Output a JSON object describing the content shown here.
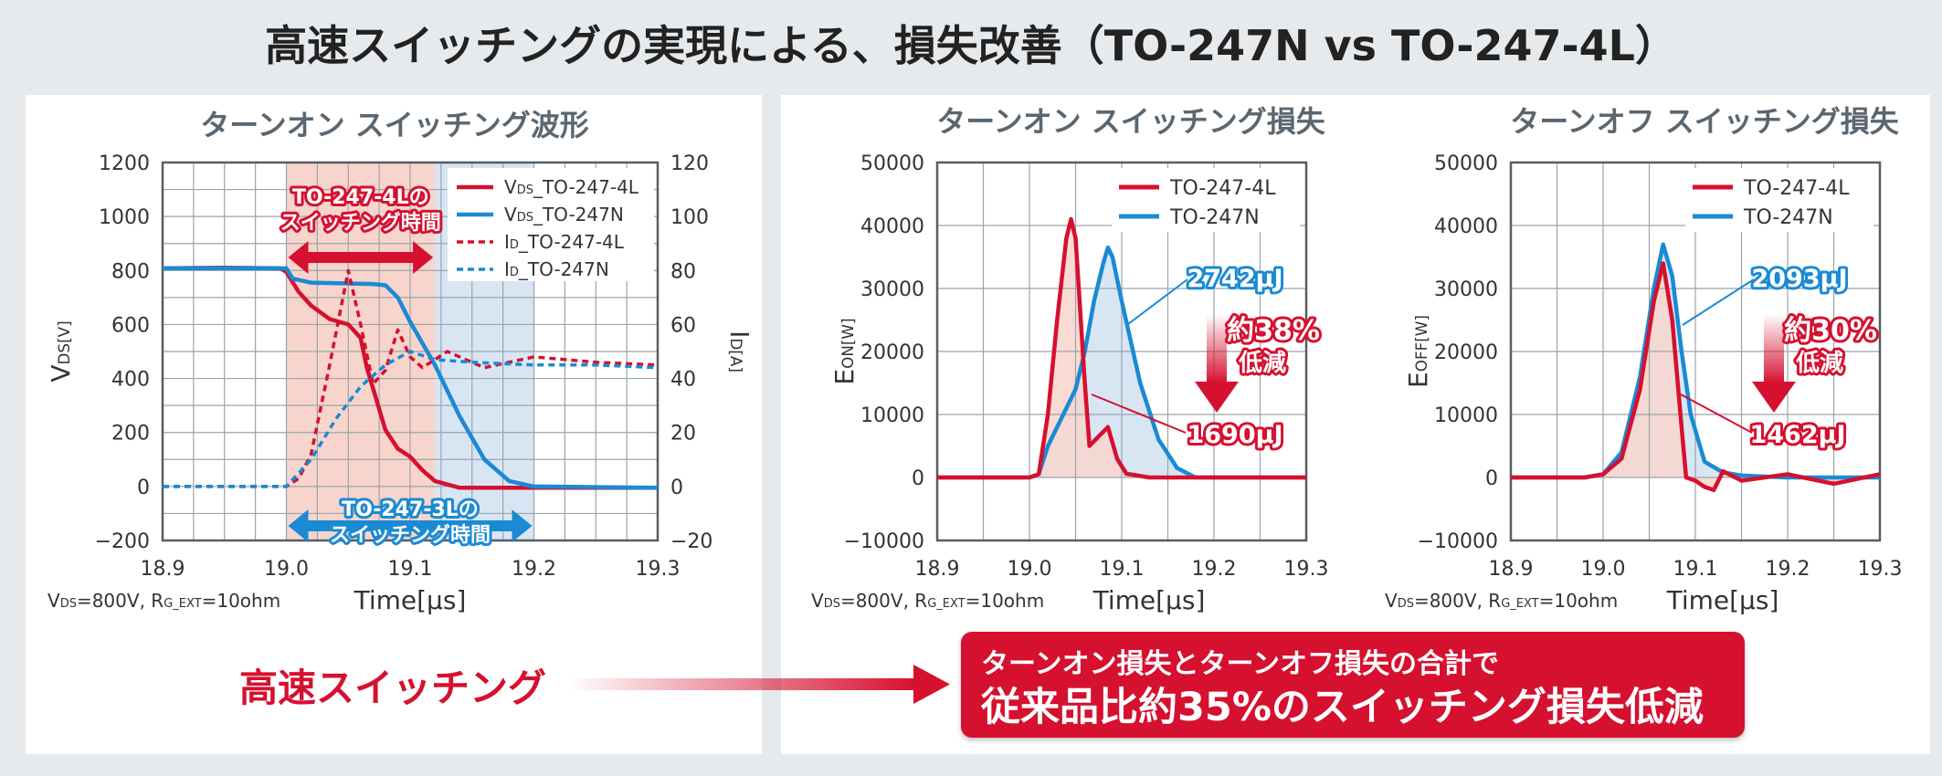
{
  "title": "高速スイッチングの実現による、損失改善（TO-247N vs TO-247-4L）",
  "colors": {
    "red": "#d6102f",
    "blue": "#1a8ad4",
    "redFill": "#f8d5cc",
    "blueFill": "#d8e6f4",
    "grid": "#9aa4ac",
    "axis": "#555e66"
  },
  "left_panel": {
    "condition": "VDS=800V, RG_EXT=10ohm"
  },
  "right_panel": {
    "condition_on": "VDS=800V, RG_EXT=10ohm",
    "condition_off": "VDS=800V, RG_EXT=10ohm"
  },
  "highspeed_label": "高速スイッチング",
  "conclusion": {
    "line1": "ターンオン損失とターンオフ損失の合計で",
    "line2": "従来品比約35%のスイッチング損失低減"
  },
  "chart_data": [
    {
      "type": "line",
      "title": "ターンオン スイッチング波形",
      "xlabel": "Time[µs]",
      "ylabel_left": "VDS[V]",
      "ylabel_right": "ID[A]",
      "xlim": [
        18.9,
        19.3
      ],
      "ylim_left": [
        -200,
        1200
      ],
      "ylim_right": [
        -20,
        120
      ],
      "x_ticks": [
        "18.9",
        "19.0",
        "19.1",
        "19.2",
        "19.3"
      ],
      "y_ticks_left": [
        "1200",
        "1000",
        "800",
        "600",
        "400",
        "200",
        "0",
        "−200"
      ],
      "y_ticks_right": [
        "120",
        "100",
        "80",
        "60",
        "40",
        "20",
        "0",
        "−20"
      ],
      "grid": true,
      "legend_position": "top-right",
      "annotations": {
        "red_band": {
          "label_line1": "TO-247-4Lの",
          "label_line2": "スイッチング時間",
          "x_range": [
            19.0,
            19.12
          ]
        },
        "blue_band": {
          "label_line1": "TO-247-3Lの",
          "label_line2": "スイッチング時間",
          "x_range": [
            19.0,
            19.2
          ]
        }
      },
      "series": [
        {
          "name": "VDS_TO-247-4L",
          "legend_main": "V",
          "legend_sub": "DS",
          "legend_rest": "_TO-247-4L",
          "axis": "left",
          "style": "solid",
          "color": "#d6102f",
          "x": [
            18.9,
            18.95,
            18.995,
            19.0,
            19.01,
            19.02,
            19.035,
            19.05,
            19.06,
            19.065,
            19.08,
            19.09,
            19.1,
            19.11,
            19.12,
            19.14,
            19.3
          ],
          "y": [
            808,
            810,
            808,
            795,
            720,
            670,
            620,
            600,
            550,
            440,
            210,
            140,
            110,
            60,
            20,
            -5,
            -5
          ]
        },
        {
          "name": "VDS_TO-247N",
          "legend_main": "V",
          "legend_sub": "DS",
          "legend_rest": "_TO-247N",
          "axis": "left",
          "style": "solid",
          "color": "#1a8ad4",
          "x": [
            18.9,
            18.95,
            19.0,
            19.005,
            19.02,
            19.05,
            19.07,
            19.08,
            19.09,
            19.1,
            19.12,
            19.14,
            19.16,
            19.18,
            19.2,
            19.3
          ],
          "y": [
            808,
            808,
            808,
            770,
            755,
            752,
            750,
            745,
            700,
            610,
            450,
            260,
            100,
            20,
            0,
            -5
          ]
        },
        {
          "name": "ID_TO-247-4L",
          "legend_main": "I",
          "legend_sub": "D",
          "legend_rest": "_TO-247-4L",
          "axis": "right",
          "style": "dashed",
          "color": "#d6102f",
          "x": [
            18.9,
            19.0,
            19.01,
            19.02,
            19.035,
            19.05,
            19.06,
            19.07,
            19.08,
            19.09,
            19.1,
            19.11,
            19.13,
            19.16,
            19.2,
            19.25,
            19.3
          ],
          "y": [
            0,
            0,
            3,
            12,
            45,
            80,
            60,
            38,
            43,
            58,
            48,
            44,
            50,
            44,
            48,
            46,
            45
          ]
        },
        {
          "name": "ID_TO-247N",
          "legend_main": "I",
          "legend_sub": "D",
          "legend_rest": "_TO-247N",
          "axis": "right",
          "style": "dashed",
          "color": "#1a8ad4",
          "x": [
            18.9,
            19.0,
            19.02,
            19.04,
            19.06,
            19.08,
            19.1,
            19.12,
            19.15,
            19.2,
            19.25,
            19.3
          ],
          "y": [
            0,
            0,
            10,
            25,
            37,
            45,
            50,
            47,
            46,
            45,
            45,
            44
          ]
        }
      ]
    },
    {
      "type": "area",
      "title": "ターンオン スイッチング損失",
      "xlabel": "Time[µs]",
      "ylabel": "EON[W]",
      "xlim": [
        18.9,
        19.3
      ],
      "ylim": [
        -10000,
        50000
      ],
      "x_ticks": [
        "18.9",
        "19.0",
        "19.1",
        "19.2",
        "19.3"
      ],
      "y_ticks": [
        "50000",
        "40000",
        "30000",
        "20000",
        "10000",
        "0",
        "−10000"
      ],
      "grid": true,
      "legend_position": "top-right",
      "annotations": {
        "energy_4L": "1690µJ",
        "energy_N": "2742µJ",
        "reduction_line1": "約38%",
        "reduction_line2": "低減"
      },
      "series": [
        {
          "name": "TO-247-4L",
          "color": "#d6102f",
          "x": [
            18.9,
            19.0,
            19.01,
            19.02,
            19.03,
            19.04,
            19.045,
            19.05,
            19.06,
            19.065,
            19.075,
            19.085,
            19.095,
            19.105,
            19.13,
            19.3
          ],
          "y": [
            0,
            0,
            500,
            10000,
            25000,
            38000,
            41000,
            38000,
            15000,
            5000,
            6500,
            8000,
            3000,
            600,
            0,
            0
          ]
        },
        {
          "name": "TO-247N",
          "color": "#1a8ad4",
          "x": [
            18.9,
            19.0,
            19.01,
            19.02,
            19.04,
            19.05,
            19.06,
            19.07,
            19.08,
            19.085,
            19.09,
            19.1,
            19.12,
            19.14,
            19.16,
            19.18,
            19.3
          ],
          "y": [
            0,
            0,
            500,
            5000,
            11000,
            14000,
            20000,
            28000,
            34000,
            36500,
            35000,
            28000,
            15000,
            6000,
            1500,
            0,
            0
          ]
        }
      ]
    },
    {
      "type": "area",
      "title": "ターンオフ スイッチング損失",
      "xlabel": "Time[µs]",
      "ylabel": "EOFF[W]",
      "xlim": [
        18.9,
        19.3
      ],
      "ylim": [
        -10000,
        50000
      ],
      "x_ticks": [
        "18.9",
        "19.0",
        "19.1",
        "19.2",
        "19.3"
      ],
      "y_ticks": [
        "50000",
        "40000",
        "30000",
        "20000",
        "10000",
        "0",
        "−10000"
      ],
      "grid": true,
      "legend_position": "top-right",
      "annotations": {
        "energy_4L": "1462µJ",
        "energy_N": "2093µJ",
        "reduction_line1": "約30%",
        "reduction_line2": "低減"
      },
      "series": [
        {
          "name": "TO-247-4L",
          "color": "#d6102f",
          "x": [
            18.9,
            18.98,
            19.0,
            19.02,
            19.04,
            19.055,
            19.065,
            19.075,
            19.085,
            19.09,
            19.1,
            19.11,
            19.12,
            19.13,
            19.15,
            19.2,
            19.25,
            19.3
          ],
          "y": [
            0,
            0,
            500,
            3000,
            14000,
            28000,
            34000,
            25000,
            8000,
            0,
            -500,
            -1500,
            -2000,
            1000,
            -500,
            500,
            -1000,
            500
          ]
        },
        {
          "name": "TO-247N",
          "color": "#1a8ad4",
          "x": [
            18.9,
            18.98,
            19.0,
            19.02,
            19.04,
            19.055,
            19.065,
            19.075,
            19.085,
            19.095,
            19.11,
            19.13,
            19.15,
            19.2,
            19.3
          ],
          "y": [
            0,
            0,
            500,
            4000,
            16000,
            30000,
            37000,
            32000,
            20000,
            10000,
            2500,
            800,
            300,
            0,
            0
          ]
        }
      ]
    }
  ]
}
